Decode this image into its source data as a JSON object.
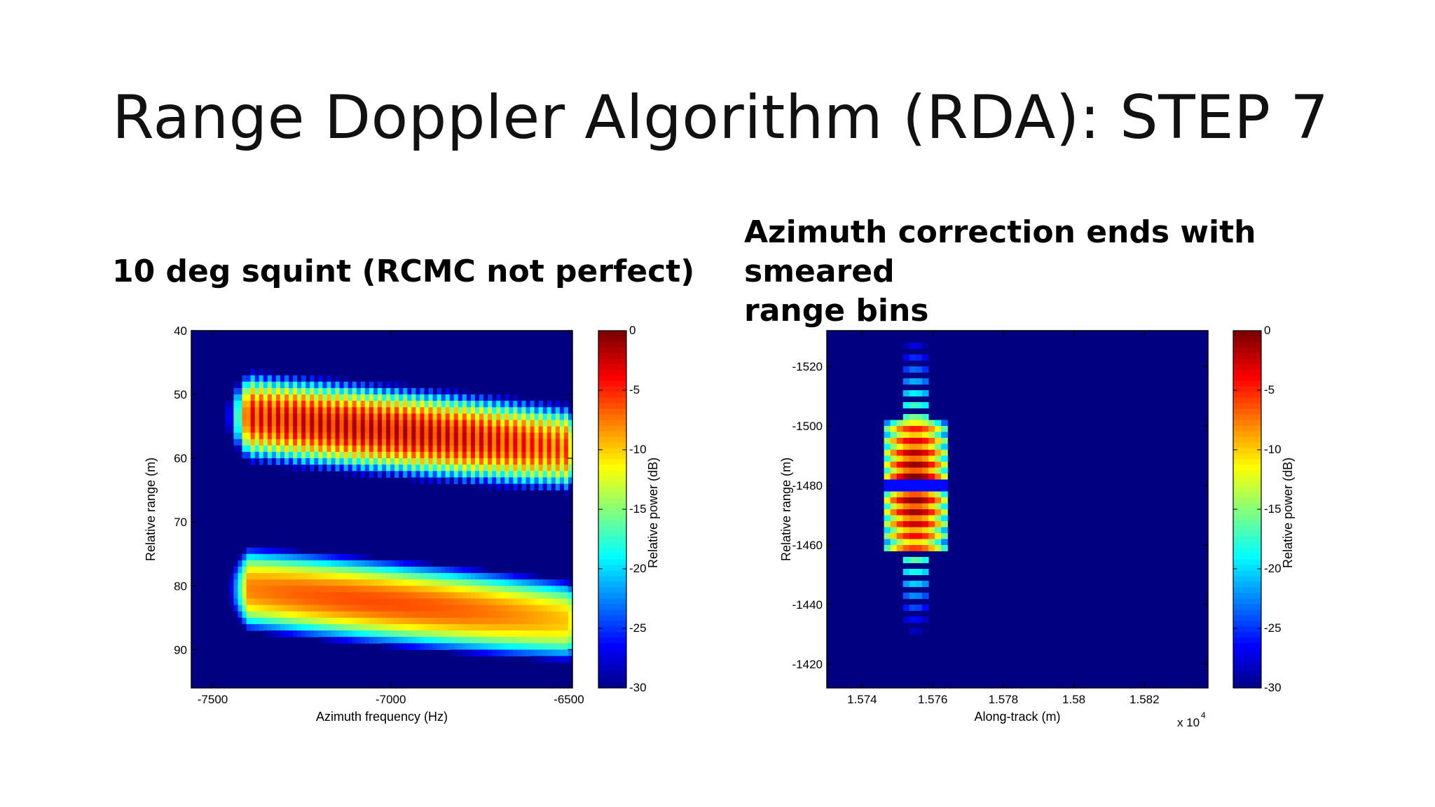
{
  "slide": {
    "title": "Range Doppler Algorithm (RDA): STEP 7",
    "left_heading": "10 deg squint (RCMC not perfect)",
    "right_heading_line1": "Azimuth correction ends with smeared",
    "right_heading_line2": "range bins"
  },
  "chart_data": [
    {
      "type": "heatmap",
      "title": "",
      "xlabel": "Azimuth frequency (Hz)",
      "ylabel": "Relative range (m)",
      "xlim": [
        -7560,
        -6490
      ],
      "ylim": [
        40,
        96
      ],
      "y_inverted": true,
      "xticks": [
        -7500,
        -7000,
        -6500
      ],
      "xtick_labels": [
        "-7500",
        "-7000",
        "-6500"
      ],
      "yticks": [
        40,
        50,
        60,
        70,
        80,
        90
      ],
      "ytick_labels": [
        "40",
        "50",
        "60",
        "70",
        "80",
        "90"
      ],
      "colormap": "jet",
      "background_db": -30,
      "colorbar": {
        "label": "Relative power (dB)",
        "ticks": [
          0,
          -5,
          -10,
          -15,
          -20,
          -25,
          -30
        ],
        "tick_labels": [
          "0",
          "-5",
          "-10",
          "-15",
          "-20",
          "-25",
          "-30"
        ],
        "range": [
          -30,
          0
        ]
      },
      "blobs": [
        {
          "name": "upper",
          "x_start": -7400,
          "x_end": -6500,
          "y_top_at_start": 46,
          "y_top_at_end": 51,
          "thickness": 15,
          "peak_db": -1,
          "striped": true
        },
        {
          "name": "lower",
          "x_start": -7400,
          "x_end": -6500,
          "y_top_at_start": 73,
          "y_top_at_end": 78,
          "thickness": 15,
          "peak_db": -6,
          "striped": false
        }
      ]
    },
    {
      "type": "heatmap",
      "title": "",
      "xlabel": "Along-track (m)",
      "ylabel": "Relative range (m)",
      "x_multiplier": "x 10",
      "x_multiplier_exponent": "4",
      "xlim": [
        1.573,
        1.5838
      ],
      "ylim": [
        -1532,
        -1412
      ],
      "xticks": [
        1.574,
        1.576,
        1.578,
        1.58,
        1.582
      ],
      "xtick_labels": [
        "1.574",
        "1.576",
        "1.578",
        "1.58",
        "1.582"
      ],
      "yticks": [
        -1520,
        -1500,
        -1480,
        -1460,
        -1440,
        -1420
      ],
      "ytick_labels": [
        "-1520",
        "-1500",
        "-1480",
        "-1460",
        "-1440",
        "-1420"
      ],
      "colormap": "jet",
      "background_db": -30,
      "colorbar": {
        "label": "Relative power (dB)",
        "ticks": [
          0,
          -5,
          -10,
          -15,
          -20,
          -25,
          -30
        ],
        "tick_labels": [
          "0",
          "-5",
          "-10",
          "-15",
          "-20",
          "-25",
          "-30"
        ],
        "range": [
          -30,
          0
        ]
      },
      "target": {
        "x_center": 1.5755,
        "y_center": -1480,
        "core_width": 0.0018,
        "core_height": 44,
        "tail_height": 100,
        "peak_db": 0
      }
    }
  ]
}
